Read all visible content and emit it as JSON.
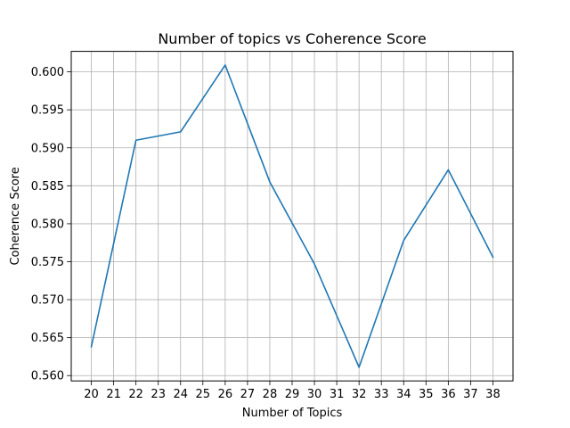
{
  "chart_data": {
    "type": "line",
    "title": "Number of topics vs Coherence Score",
    "xlabel": "Number of Topics",
    "ylabel": "Coherence Score",
    "x": [
      20,
      22,
      24,
      26,
      28,
      30,
      32,
      34,
      36,
      38
    ],
    "series": [
      {
        "values": [
          0.5638,
          0.591,
          0.5921,
          0.6009,
          0.5855,
          0.5747,
          0.5611,
          0.5778,
          0.5871,
          0.5756
        ]
      }
    ],
    "xticks": [
      "20",
      "21",
      "22",
      "23",
      "24",
      "25",
      "26",
      "27",
      "28",
      "29",
      "30",
      "31",
      "32",
      "33",
      "34",
      "35",
      "36",
      "37",
      "38"
    ],
    "yticks": [
      "0.560",
      "0.565",
      "0.570",
      "0.575",
      "0.580",
      "0.585",
      "0.590",
      "0.595",
      "0.600"
    ],
    "xlim": [
      19.1,
      38.9
    ],
    "ylim": [
      0.5593,
      0.6027
    ],
    "grid": true,
    "line_color": "#1f77b4",
    "grid_color": "#b0b0b0"
  }
}
